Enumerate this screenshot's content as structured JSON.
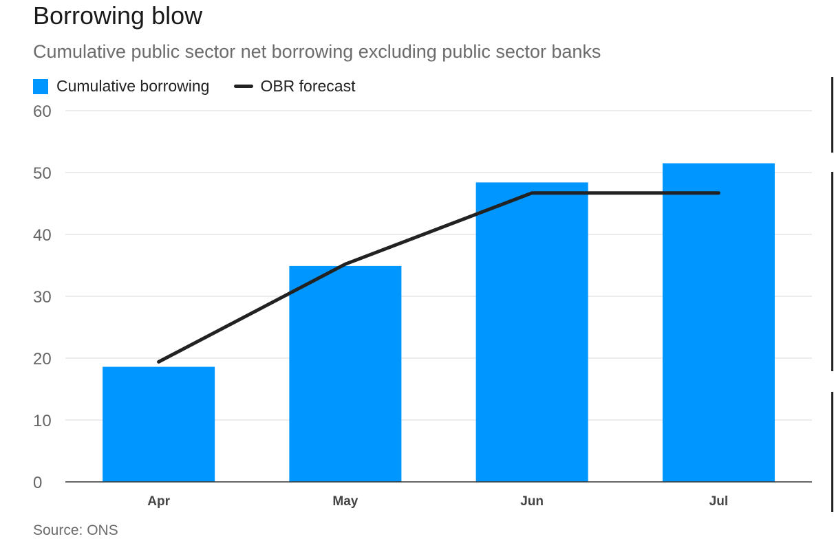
{
  "title": "Borrowing blow",
  "subtitle": "Cumulative public sector net borrowing excluding public sector banks",
  "legend": {
    "bars_label": "Cumulative borrowing",
    "line_label": "OBR forecast"
  },
  "source": "Source: ONS",
  "colors": {
    "bars": "#0096ff",
    "line": "#222222",
    "grid": "#e6e6e6",
    "axis": "#333333",
    "tick_text": "#666666"
  },
  "chart_data": {
    "type": "bar",
    "categories": [
      "Apr",
      "May",
      "Jun",
      "Jul"
    ],
    "series": [
      {
        "name": "Cumulative borrowing",
        "type": "bar",
        "values": [
          18.6,
          34.9,
          48.4,
          51.5
        ]
      },
      {
        "name": "OBR forecast",
        "type": "line",
        "values": [
          19.4,
          35.2,
          46.7,
          46.7
        ]
      }
    ],
    "yticks": [
      "0",
      "10",
      "20",
      "30",
      "40",
      "50",
      "60"
    ],
    "ylim": [
      0,
      60
    ],
    "grid": true,
    "legend_position": "top-left"
  }
}
